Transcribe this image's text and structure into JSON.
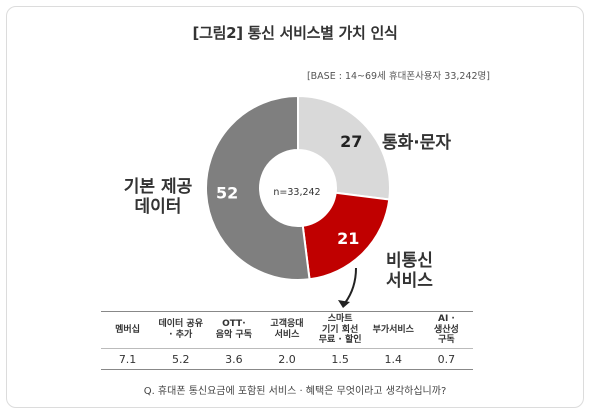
{
  "chart_data": [
    {
      "type": "pie",
      "title": "[그림2] 통신 서비스별 가치 인식",
      "subtitle": "[BASE : 14~69세 휴대폰사용자 33,242명]",
      "center_label": "n=33,242",
      "slices": [
        {
          "label": "통화·문자",
          "value": 27,
          "color": "#d9d9d9",
          "text_color": "#222222"
        },
        {
          "label": "비통신\n서비스",
          "value": 21,
          "color": "#c00000",
          "text_color": "#ffffff"
        },
        {
          "label": "기본 제공\n데이터",
          "value": 52,
          "color": "#7f7f7f",
          "text_color": "#ffffff"
        }
      ]
    },
    {
      "type": "table",
      "columns": [
        "멤버십",
        "데이터 공유\n· 추가",
        "OTT·\n음악 구독",
        "고객응대\n서비스",
        "스마트\n기기 회선\n무료 · 할인",
        "부가서비스",
        "AI ·\n생산성\n구독"
      ],
      "values": [
        "7.1",
        "5.2",
        "3.6",
        "2.0",
        "1.5",
        "1.4",
        "0.7"
      ]
    }
  ],
  "question": "Q. 휴대폰 통신요금에 포함된 서비스 · 혜택은 무엇이라고 생각하십니까?"
}
